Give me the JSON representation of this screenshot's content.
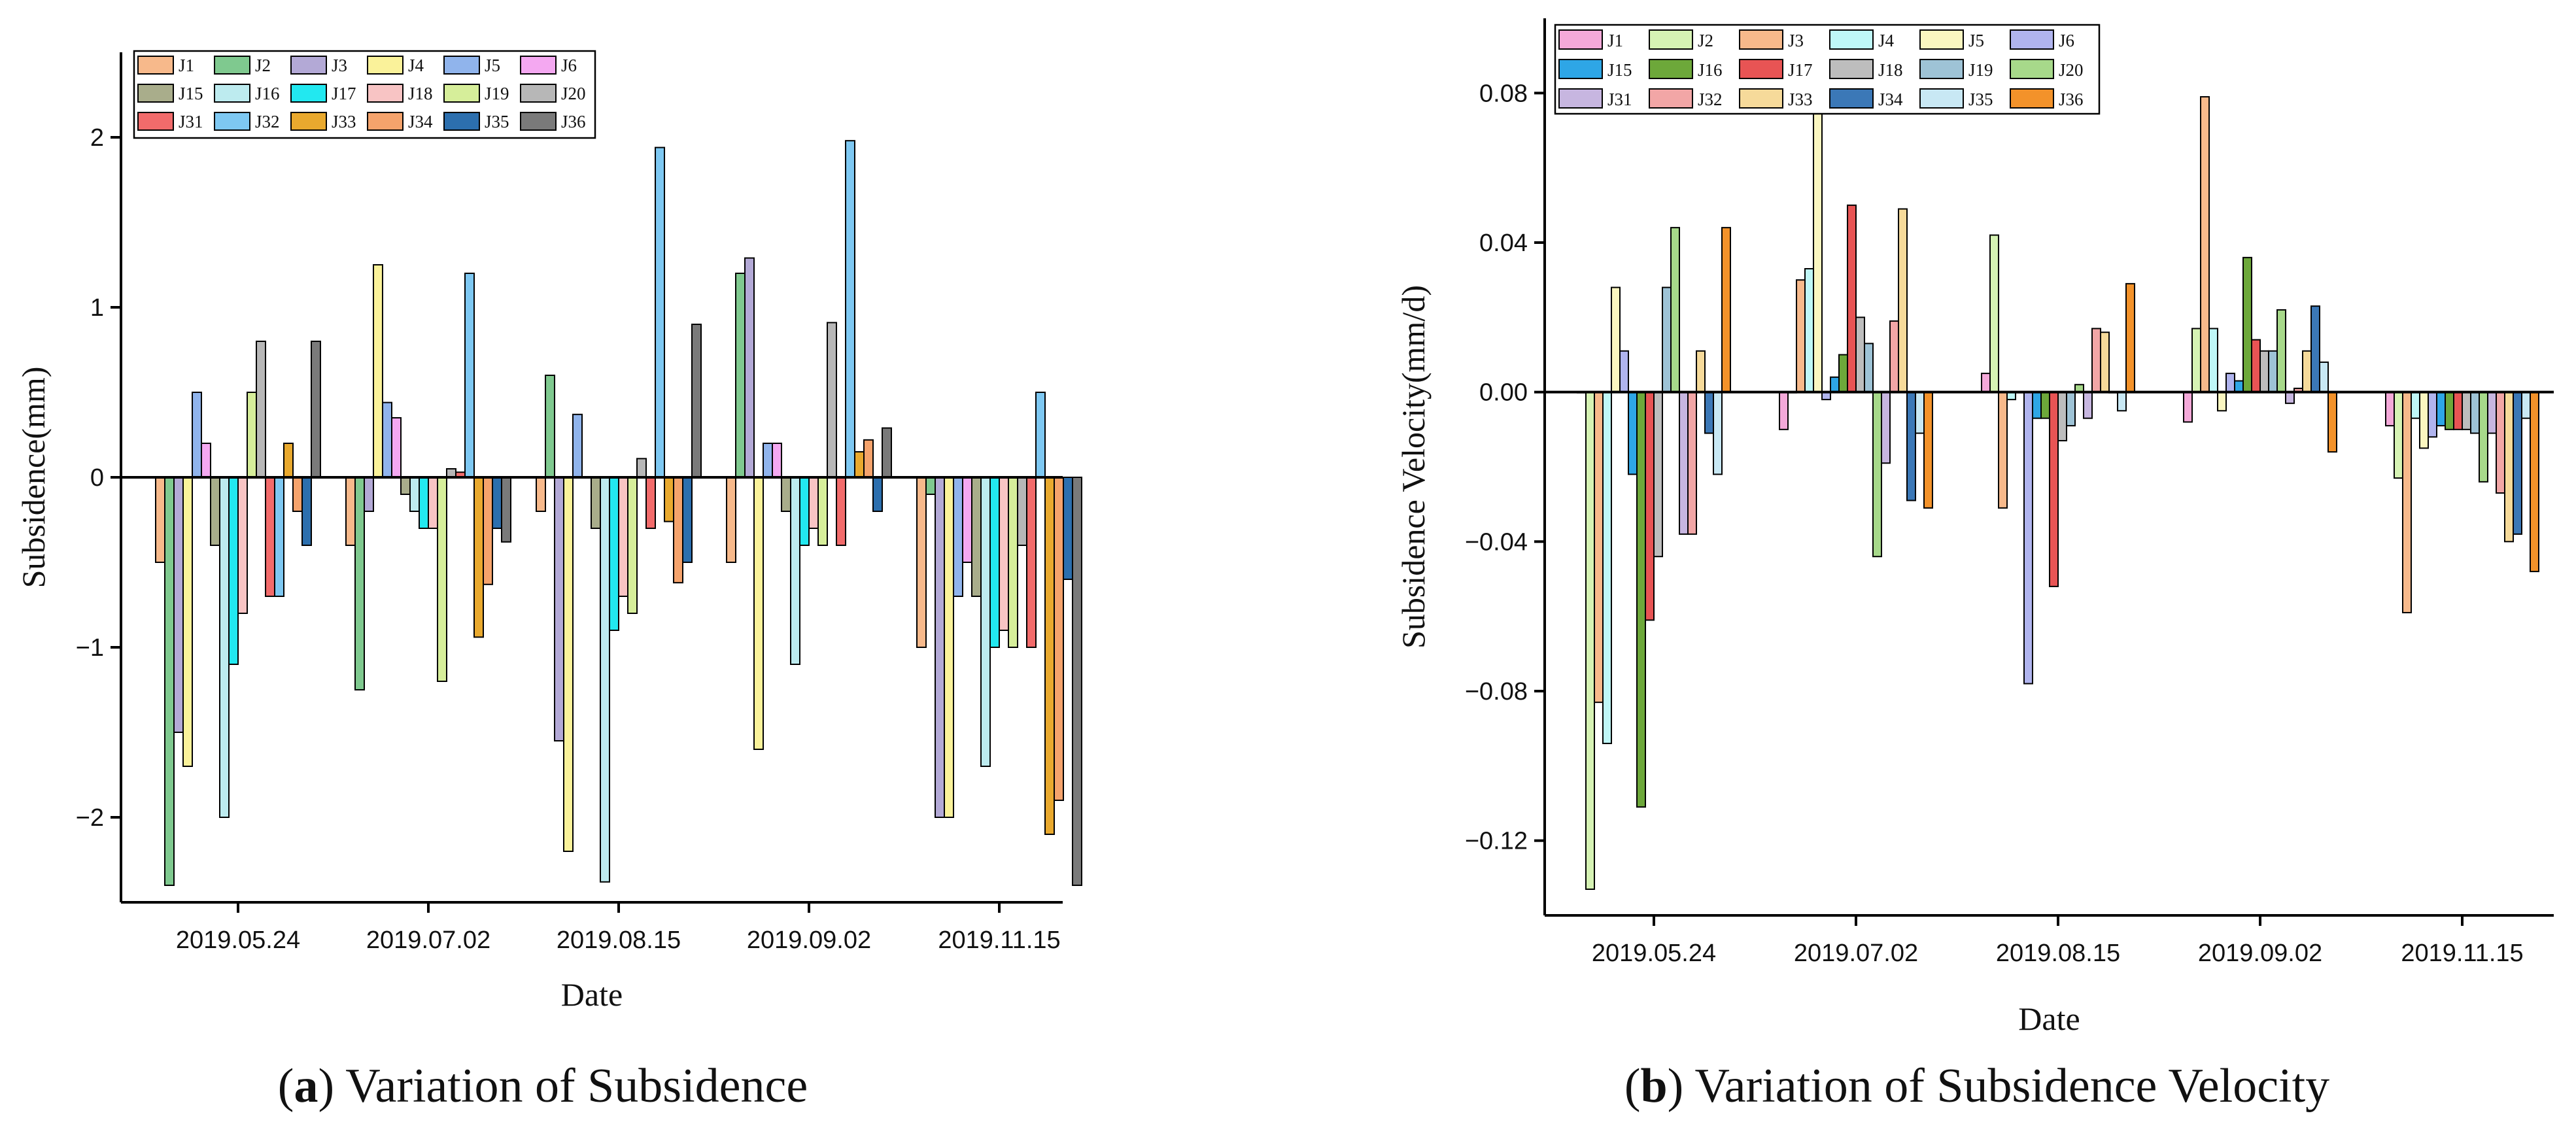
{
  "chart_data": [
    {
      "id": "a",
      "type": "bar",
      "caption_letter": "a",
      "caption_rest": ") Variation of Subsidence",
      "xlabel": "Date",
      "ylabel": "Subsidence(mm)",
      "ylim": [
        -2.5,
        2.5
      ],
      "yticks": [
        -2,
        -1,
        0,
        1,
        2
      ],
      "ytick_labels": [
        "−2",
        "−1",
        "0",
        "1",
        "2"
      ],
      "categories": [
        "2019.05.24",
        "2019.07.02",
        "2019.08.15",
        "2019.09.02",
        "2019.11.15"
      ],
      "series": [
        {
          "name": "J1",
          "color": "#F7B98B",
          "values": [
            -0.5,
            -0.4,
            -0.2,
            -0.5,
            -1.0
          ]
        },
        {
          "name": "J2",
          "color": "#7FC98F",
          "values": [
            -2.4,
            -1.25,
            0.6,
            1.2,
            -0.1
          ]
        },
        {
          "name": "J3",
          "color": "#B3A9D6",
          "values": [
            -1.5,
            -0.2,
            -1.55,
            1.29,
            -2.0
          ]
        },
        {
          "name": "J4",
          "color": "#FAF29A",
          "values": [
            -1.7,
            1.25,
            -2.2,
            -1.6,
            -2.0
          ]
        },
        {
          "name": "J5",
          "color": "#90B4EC",
          "values": [
            0.5,
            0.44,
            0.37,
            0.2,
            -0.7
          ]
        },
        {
          "name": "J6",
          "color": "#F4A8F1",
          "values": [
            0.2,
            0.35,
            0.0,
            0.2,
            -0.5
          ]
        },
        {
          "name": "J15",
          "color": "#A9AD8B",
          "values": [
            -0.4,
            -0.1,
            -0.3,
            -0.2,
            -0.7
          ]
        },
        {
          "name": "J16",
          "color": "#BDEBEF",
          "values": [
            -2.0,
            -0.2,
            -2.38,
            -1.1,
            -1.7
          ]
        },
        {
          "name": "J17",
          "color": "#22E8F0",
          "values": [
            -1.1,
            -0.3,
            -0.9,
            -0.4,
            -1.0
          ]
        },
        {
          "name": "J18",
          "color": "#F8C4C4",
          "values": [
            -0.8,
            -0.3,
            -0.7,
            -0.3,
            -0.9
          ]
        },
        {
          "name": "J19",
          "color": "#D6EE9A",
          "values": [
            0.5,
            -1.2,
            -0.8,
            -0.4,
            -1.0
          ]
        },
        {
          "name": "J20",
          "color": "#B7B7B7",
          "values": [
            0.8,
            0.05,
            0.11,
            0.91,
            -0.4
          ]
        },
        {
          "name": "J31",
          "color": "#F26B6B",
          "values": [
            -0.7,
            0.03,
            -0.3,
            -0.4,
            -1.0
          ]
        },
        {
          "name": "J32",
          "color": "#7EC8F2",
          "values": [
            -0.7,
            1.2,
            1.94,
            1.98,
            0.5
          ]
        },
        {
          "name": "J33",
          "color": "#E9A92E",
          "values": [
            0.2,
            -0.94,
            -0.26,
            0.15,
            -2.1
          ]
        },
        {
          "name": "J34",
          "color": "#F5A36C",
          "values": [
            -0.2,
            -0.63,
            -0.62,
            0.22,
            -1.9
          ]
        },
        {
          "name": "J35",
          "color": "#2C6FAE",
          "values": [
            -0.4,
            -0.3,
            -0.5,
            -0.2,
            -0.6
          ]
        },
        {
          "name": "J36",
          "color": "#7A7A7A",
          "values": [
            0.8,
            -0.38,
            0.9,
            0.29,
            -2.4
          ]
        }
      ]
    },
    {
      "id": "b",
      "type": "bar",
      "caption_letter": "b",
      "caption_rest": ") Variation of Subsidence Velocity",
      "xlabel": "Date",
      "ylabel": "Subsidence Velocity(mm/d)",
      "ylim": [
        -0.14,
        0.1
      ],
      "yticks": [
        -0.12,
        -0.08,
        -0.04,
        0.0,
        0.04,
        0.08
      ],
      "ytick_labels": [
        "−0.12",
        "−0.08",
        "−0.04",
        "0.00",
        "0.04",
        "0.08"
      ],
      "categories": [
        "2019.05.24",
        "2019.07.02",
        "2019.08.15",
        "2019.09.02",
        "2019.11.15"
      ],
      "series": [
        {
          "name": "J1",
          "color": "#F4A9D9",
          "values": [
            0.0,
            -0.01,
            0.005,
            -0.008,
            -0.009
          ]
        },
        {
          "name": "J2",
          "color": "#D6F3B4",
          "values": [
            -0.133,
            0.0,
            0.042,
            0.017,
            -0.023
          ]
        },
        {
          "name": "J3",
          "color": "#F7B98B",
          "values": [
            -0.083,
            0.03,
            -0.031,
            0.079,
            -0.059
          ]
        },
        {
          "name": "J4",
          "color": "#BFF7F7",
          "values": [
            -0.094,
            0.033,
            -0.002,
            0.017,
            -0.007
          ]
        },
        {
          "name": "J5",
          "color": "#FAF6C0",
          "values": [
            0.028,
            0.076,
            0.0,
            -0.005,
            -0.015
          ]
        },
        {
          "name": "J6",
          "color": "#B0B4EE",
          "values": [
            0.011,
            -0.002,
            -0.078,
            0.005,
            -0.012
          ]
        },
        {
          "name": "J15",
          "color": "#2EA6E6",
          "values": [
            -0.022,
            0.004,
            -0.007,
            0.003,
            -0.009
          ]
        },
        {
          "name": "J16",
          "color": "#6DA83A",
          "values": [
            -0.111,
            0.01,
            -0.007,
            0.036,
            -0.01
          ]
        },
        {
          "name": "J17",
          "color": "#E85454",
          "values": [
            -0.061,
            0.05,
            -0.052,
            0.014,
            -0.01
          ]
        },
        {
          "name": "J18",
          "color": "#BDBDBD",
          "values": [
            -0.044,
            0.02,
            -0.013,
            0.011,
            -0.01
          ]
        },
        {
          "name": "J19",
          "color": "#9EC3D6",
          "values": [
            0.028,
            0.013,
            -0.009,
            0.011,
            -0.011
          ]
        },
        {
          "name": "J20",
          "color": "#A7D98A",
          "values": [
            0.044,
            -0.044,
            0.002,
            0.022,
            -0.024
          ]
        },
        {
          "name": "J31",
          "color": "#C7B6E0",
          "values": [
            -0.038,
            -0.019,
            -0.007,
            -0.003,
            -0.011
          ]
        },
        {
          "name": "J32",
          "color": "#F2A6A6",
          "values": [
            -0.038,
            0.019,
            0.017,
            0.001,
            -0.027
          ]
        },
        {
          "name": "J33",
          "color": "#F6DA9A",
          "values": [
            0.011,
            0.049,
            0.016,
            0.011,
            -0.04
          ]
        },
        {
          "name": "J34",
          "color": "#3B78B7",
          "values": [
            -0.011,
            -0.029,
            0.0,
            0.023,
            -0.038
          ]
        },
        {
          "name": "J35",
          "color": "#C8E8F4",
          "values": [
            -0.022,
            -0.011,
            -0.005,
            0.008,
            -0.007
          ]
        },
        {
          "name": "J36",
          "color": "#F3922A",
          "values": [
            0.044,
            -0.031,
            0.029,
            -0.016,
            -0.048
          ]
        }
      ]
    }
  ]
}
